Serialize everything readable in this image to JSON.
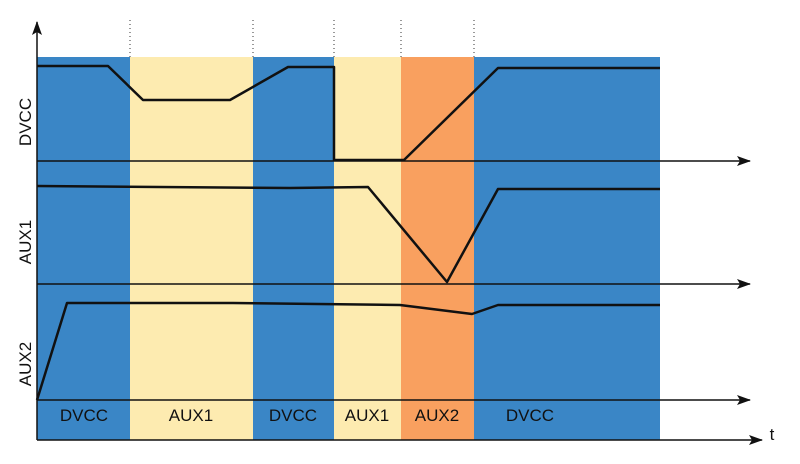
{
  "axes": {
    "signals": [
      "DVCC",
      "AUX1",
      "AUX2"
    ],
    "time": "t"
  },
  "phases": [
    "DVCC",
    "AUX1",
    "DVCC",
    "AUX1",
    "AUX2",
    "DVCC"
  ]
}
